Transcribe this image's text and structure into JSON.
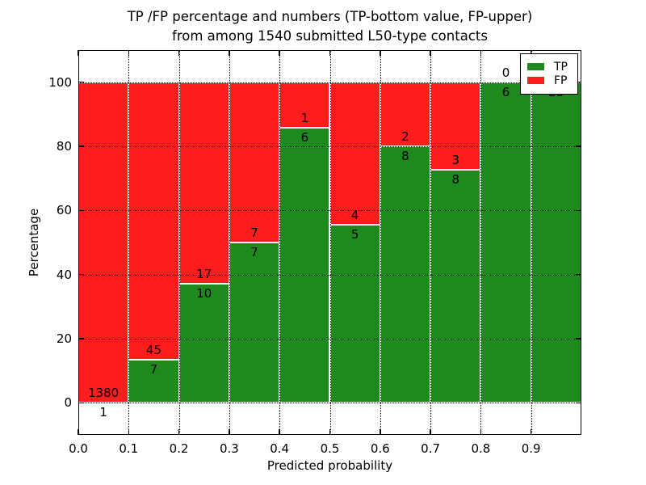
{
  "chart_data": {
    "type": "bar",
    "stacked": true,
    "percent_axis": true,
    "title": "TP /FP percentage and numbers (TP-bottom value, FP-upper)",
    "title_line2": "from among 1540 submitted L50-type contacts",
    "xlabel": "Predicted probability",
    "ylabel": "Percentage",
    "xlim": [
      0.0,
      1.0
    ],
    "ylim": [
      -10,
      110
    ],
    "grid": "dotted",
    "bin_width": 0.1,
    "categories": [
      "0.0-0.1",
      "0.1-0.2",
      "0.2-0.3",
      "0.3-0.4",
      "0.4-0.5",
      "0.5-0.6",
      "0.6-0.7",
      "0.7-0.8",
      "0.8-0.9",
      "0.9-1.0"
    ],
    "series": [
      {
        "name": "TP",
        "color": "#1e8a1e",
        "counts": [
          1,
          7,
          10,
          7,
          6,
          5,
          8,
          8,
          6,
          23
        ],
        "pct": [
          0.072,
          13.462,
          37.037,
          50.0,
          85.714,
          55.556,
          80.0,
          72.727,
          100.0,
          100.0
        ]
      },
      {
        "name": "FP",
        "color": "#fd1d1d",
        "counts": [
          1380,
          45,
          17,
          7,
          1,
          4,
          2,
          3,
          0,
          0
        ],
        "pct": [
          99.928,
          86.538,
          62.963,
          50.0,
          14.286,
          44.444,
          20.0,
          27.273,
          0.0,
          0.0
        ]
      }
    ],
    "xticks": {
      "values": [
        0.0,
        0.1,
        0.2,
        0.3,
        0.4,
        0.5,
        0.6,
        0.7,
        0.8,
        0.9
      ],
      "labels": [
        "0.0",
        "0.1",
        "0.2",
        "0.3",
        "0.4",
        "0.5",
        "0.6",
        "0.7",
        "0.8",
        "0.9"
      ]
    },
    "yticks": {
      "values": [
        0,
        20,
        40,
        60,
        80,
        100
      ],
      "labels": [
        "0",
        "20",
        "40",
        "60",
        "80",
        "100"
      ]
    },
    "legend": {
      "position": "upper right",
      "items": [
        {
          "label": "TP",
          "color": "#1e8a1e"
        },
        {
          "label": "FP",
          "color": "#fd1d1d"
        }
      ]
    }
  }
}
